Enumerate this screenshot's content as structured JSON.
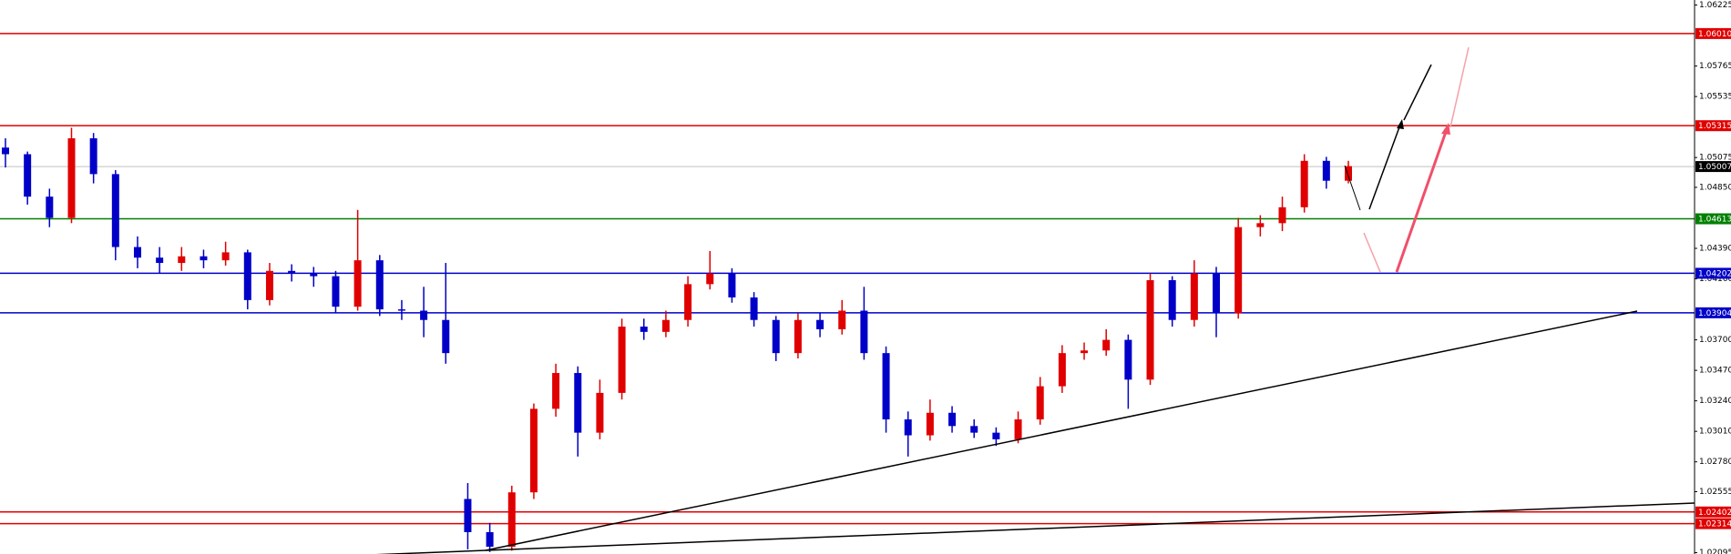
{
  "chart_data": {
    "type": "candlestick",
    "up_color": "#e00000",
    "down_color": "#0000c8",
    "ylim": [
      1.02085,
      1.06263
    ],
    "yticks": [
      {
        "value": 1.06225,
        "label": "1.06225"
      },
      {
        "value": 1.05765,
        "label": "1.05765"
      },
      {
        "value": 1.05535,
        "label": "1.05535"
      },
      {
        "value": 1.05075,
        "label": "1.05075"
      },
      {
        "value": 1.0485,
        "label": "1.04850"
      },
      {
        "value": 1.0439,
        "label": "1.04390"
      },
      {
        "value": 1.0416,
        "label": "1.04160"
      },
      {
        "value": 1.037,
        "label": "1.03700"
      },
      {
        "value": 1.0347,
        "label": "1.03470"
      },
      {
        "value": 1.0324,
        "label": "1.03240"
      },
      {
        "value": 1.0301,
        "label": "1.03010"
      },
      {
        "value": 1.0278,
        "label": "1.02780"
      },
      {
        "value": 1.02555,
        "label": "1.02555"
      },
      {
        "value": 1.02095,
        "label": "1.02095"
      }
    ],
    "levels": [
      {
        "value": 1.0601,
        "label": "1.06010",
        "color": "#e00000"
      },
      {
        "value": 1.05315,
        "label": "1.05315",
        "color": "#e00000"
      },
      {
        "value": 1.05007,
        "label": "1.05007",
        "color": "#000000"
      },
      {
        "value": 1.04613,
        "label": "1.04613",
        "color": "#008000"
      },
      {
        "value": 1.04202,
        "label": "1.04202",
        "color": "#0000c8"
      },
      {
        "value": 1.03904,
        "label": "1.03904",
        "color": "#0000c8"
      },
      {
        "value": 1.02402,
        "label": "1.02402",
        "color": "#e00000"
      },
      {
        "value": 1.02314,
        "label": "1.02314",
        "color": "#e00000"
      }
    ],
    "open": [
      1.0515,
      1.051,
      1.0478,
      1.0462,
      1.0522,
      1.0495,
      1.044,
      1.0432,
      1.0428,
      1.0433,
      1.043,
      1.0436,
      1.04,
      1.0422,
      1.042,
      1.0418,
      1.0395,
      1.043,
      1.0393,
      1.0392,
      1.0385,
      1.025,
      1.0225,
      1.0214,
      1.0255,
      1.0318,
      1.0345,
      1.03,
      1.033,
      1.038,
      1.0376,
      1.0385,
      1.0412,
      1.042,
      1.0402,
      1.0385,
      1.036,
      1.0385,
      1.0378,
      1.0392,
      1.036,
      1.031,
      1.0298,
      1.0315,
      1.0305,
      1.03,
      1.0295,
      1.031,
      1.0335,
      1.036,
      1.0362,
      1.037,
      1.034,
      1.0415,
      1.0385,
      1.042,
      1.039,
      1.0455,
      1.0458,
      1.047,
      1.0505,
      1.049
    ],
    "high": [
      1.0522,
      1.0512,
      1.0484,
      1.053,
      1.0526,
      1.0498,
      1.0448,
      1.044,
      1.044,
      1.0438,
      1.0444,
      1.0438,
      1.0428,
      1.0427,
      1.0425,
      1.0422,
      1.0468,
      1.0434,
      1.04,
      1.041,
      1.0428,
      1.0262,
      1.0232,
      1.026,
      1.0322,
      1.0352,
      1.035,
      1.034,
      1.0386,
      1.0386,
      1.0392,
      1.0418,
      1.0437,
      1.0424,
      1.0406,
      1.0388,
      1.039,
      1.039,
      1.04,
      1.041,
      1.0365,
      1.0316,
      1.0325,
      1.032,
      1.031,
      1.0304,
      1.0316,
      1.0342,
      1.0366,
      1.0368,
      1.0378,
      1.0374,
      1.042,
      1.0418,
      1.043,
      1.0425,
      1.0462,
      1.0464,
      1.0478,
      1.051,
      1.0508,
      1.0505
    ],
    "low": [
      1.05,
      1.0472,
      1.0455,
      1.0458,
      1.0488,
      1.043,
      1.0424,
      1.042,
      1.0422,
      1.0424,
      1.0426,
      1.0393,
      1.0396,
      1.0414,
      1.041,
      1.039,
      1.0392,
      1.0388,
      1.0385,
      1.0372,
      1.0352,
      1.0212,
      1.021,
      1.0211,
      1.025,
      1.0312,
      1.0282,
      1.0295,
      1.0325,
      1.037,
      1.0372,
      1.038,
      1.0408,
      1.0398,
      1.038,
      1.0354,
      1.0356,
      1.0372,
      1.0374,
      1.0355,
      1.03,
      1.0282,
      1.0294,
      1.03,
      1.0296,
      1.029,
      1.0292,
      1.0306,
      1.033,
      1.0355,
      1.0358,
      1.0318,
      1.0336,
      1.038,
      1.038,
      1.0372,
      1.0386,
      1.0448,
      1.0452,
      1.0466,
      1.0484,
      1.0488
    ],
    "close": [
      1.051,
      1.0478,
      1.0462,
      1.0522,
      1.0495,
      1.044,
      1.0432,
      1.0428,
      1.0433,
      1.043,
      1.0436,
      1.04,
      1.0422,
      1.042,
      1.0418,
      1.0395,
      1.043,
      1.0393,
      1.0392,
      1.0385,
      1.036,
      1.0225,
      1.0214,
      1.0255,
      1.0318,
      1.0345,
      1.03,
      1.033,
      1.038,
      1.0376,
      1.0385,
      1.0412,
      1.042,
      1.0402,
      1.0385,
      1.036,
      1.0385,
      1.0378,
      1.0392,
      1.036,
      1.031,
      1.0298,
      1.0315,
      1.0305,
      1.03,
      1.0295,
      1.031,
      1.0335,
      1.036,
      1.0362,
      1.037,
      1.034,
      1.0415,
      1.0385,
      1.042,
      1.039,
      1.0455,
      1.0458,
      1.047,
      1.0505,
      1.049,
      1.0501
    ]
  }
}
